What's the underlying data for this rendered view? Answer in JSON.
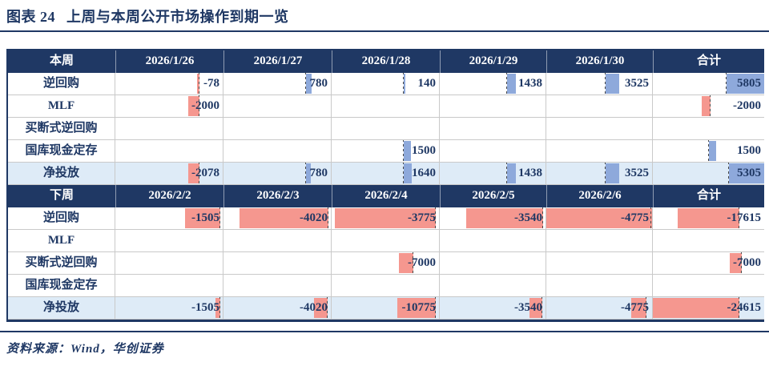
{
  "page": {
    "title_label": "图表 24",
    "title_text": "上周与本周公开市场操作到期一览",
    "source": "资料来源：Wind，华创证券"
  },
  "colors": {
    "navy": "#1F3864",
    "row_highlight": "#DEEBF7",
    "bar_positive": "#8EA9DB",
    "bar_negative": "#F5978F",
    "gridline": "#C9C9C9"
  },
  "chart_data": {
    "type": "table",
    "title": "上周与本周公开市场操作到期一览",
    "legend_note": "blue bars = positive amounts, red bars = negative amounts (Excel-style in-cell data bars)",
    "sections": [
      {
        "week": "本周",
        "columns": [
          "2026/1/26",
          "2026/1/27",
          "2026/1/28",
          "2026/1/29",
          "2026/1/30",
          "合计"
        ],
        "rows": [
          {
            "label": "逆回购",
            "highlight": false,
            "values": [
              -78,
              780,
              140,
              1438,
              3525,
              5805
            ],
            "bars": [
              [
                78,
                2
              ],
              [
                77,
                5
              ],
              [
                67,
                2
              ],
              [
                64,
                8
              ],
              [
                56,
                13
              ],
              [
                66,
                34
              ]
            ]
          },
          {
            "label": "MLF",
            "highlight": false,
            "values": [
              -2000,
              null,
              null,
              null,
              null,
              -2000
            ],
            "bars": [
              [
                78,
                10
              ],
              null,
              null,
              null,
              null,
              [
                52,
                8
              ]
            ]
          },
          {
            "label": "买断式逆回购",
            "highlight": false,
            "values": [
              null,
              null,
              null,
              null,
              null,
              null
            ],
            "bars": [
              null,
              null,
              null,
              null,
              null,
              null
            ]
          },
          {
            "label": "国库现金定存",
            "highlight": false,
            "values": [
              null,
              null,
              1500,
              null,
              null,
              1500
            ],
            "bars": [
              null,
              null,
              [
                67,
                7
              ],
              null,
              null,
              [
                50,
                7
              ]
            ]
          },
          {
            "label": "净投放",
            "highlight": true,
            "values": [
              -2078,
              780,
              1640,
              1438,
              3525,
              5305
            ],
            "bars": [
              [
                78,
                10
              ],
              [
                77,
                4
              ],
              [
                67,
                8
              ],
              [
                64,
                8
              ],
              [
                56,
                13
              ],
              [
                68,
                32
              ]
            ]
          }
        ]
      },
      {
        "week": "下周",
        "columns": [
          "2026/2/2",
          "2026/2/3",
          "2026/2/4",
          "2026/2/5",
          "2026/2/6",
          "合计"
        ],
        "rows": [
          {
            "label": "逆回购",
            "highlight": false,
            "values": [
              -1505,
              -4020,
              -3775,
              -3540,
              -4775,
              -17615
            ],
            "bars": [
              [
                98,
                33
              ],
              [
                98,
                83
              ],
              [
                97,
                94
              ],
              [
                98,
                73
              ],
              [
                100,
                100
              ],
              [
                78,
                56
              ]
            ]
          },
          {
            "label": "MLF",
            "highlight": false,
            "values": [
              null,
              null,
              null,
              null,
              null,
              null
            ],
            "bars": [
              null,
              null,
              null,
              null,
              null,
              null
            ]
          },
          {
            "label": "买断式逆回购",
            "highlight": false,
            "values": [
              null,
              null,
              -7000,
              null,
              null,
              -7000
            ],
            "bars": [
              null,
              null,
              [
                76,
                13
              ],
              null,
              null,
              [
                80,
                11
              ]
            ]
          },
          {
            "label": "国库现金定存",
            "highlight": false,
            "values": [
              null,
              null,
              null,
              null,
              null,
              null
            ],
            "bars": [
              null,
              null,
              null,
              null,
              null,
              null
            ]
          },
          {
            "label": "净投放",
            "highlight": true,
            "values": [
              -1505,
              -4020,
              -10775,
              -3540,
              -4775,
              -24615
            ],
            "bars": [
              [
                98,
                5
              ],
              [
                97,
                13
              ],
              [
                97,
                36
              ],
              [
                97,
                12
              ],
              [
                95,
                15
              ],
              [
                78,
                78
              ]
            ]
          }
        ]
      }
    ]
  }
}
